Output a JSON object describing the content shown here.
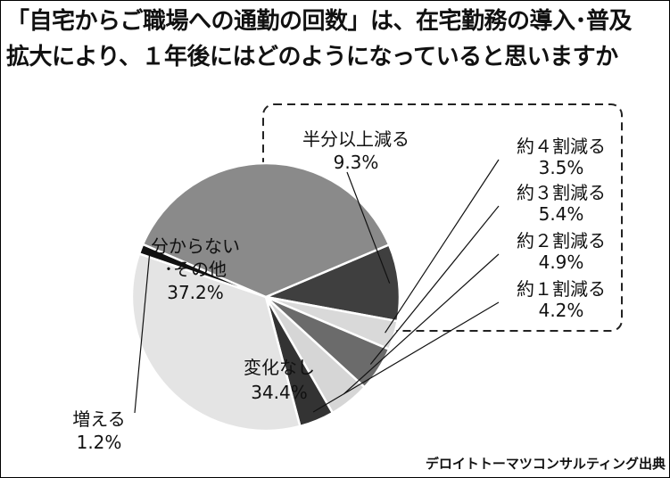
{
  "title_lines": [
    "「自宅からご職場への通勤の回数」は、在宅勤務の導入･普及",
    "拡大により、１年後にはどのようになっていると思いますか"
  ],
  "source": "デロイトトーマツコンサルティング出典",
  "chart_data": {
    "type": "pie",
    "title": "「自宅からご職場への通勤の回数」は、在宅勤務の導入･普及拡大により、１年後にはどのようになっていると思いますか",
    "slices": [
      {
        "label": "半分以上減る",
        "value": 9.3,
        "value_label": "9.3%",
        "color": "#3f3f3f"
      },
      {
        "label": "約４割減る",
        "value": 3.5,
        "value_label": "3.5%",
        "color": "#d9d9d9"
      },
      {
        "label": "約３割減る",
        "value": 5.4,
        "value_label": "5.4%",
        "color": "#6b6b6b"
      },
      {
        "label": "約２割減る",
        "value": 4.9,
        "value_label": "4.9%",
        "color": "#d6d6d6"
      },
      {
        "label": "約１割減る",
        "value": 4.2,
        "value_label": "4.2%",
        "color": "#333333"
      },
      {
        "label": "変化なし",
        "value": 34.4,
        "value_label": "34.4%",
        "color": "#e4e4e4"
      },
      {
        "label": "増える",
        "value": 1.2,
        "value_label": "1.2%",
        "color": "#111111"
      },
      {
        "label": "分からない\n･その他",
        "value": 37.2,
        "value_label": "37.2%",
        "color": "#8a8a8a"
      }
    ]
  }
}
